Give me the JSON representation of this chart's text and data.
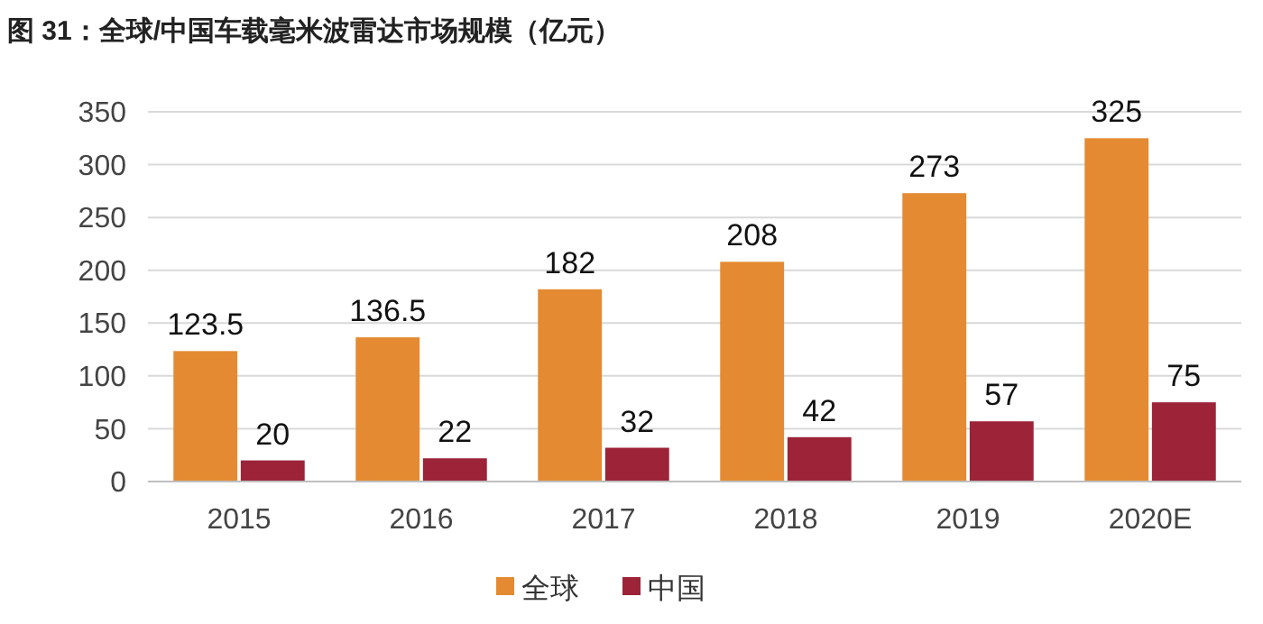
{
  "chart_data": {
    "type": "bar",
    "title": "图 31：全球/中国车载毫米波雷达市场规模（亿元）",
    "categories": [
      "2015",
      "2016",
      "2017",
      "2018",
      "2019",
      "2020E"
    ],
    "series": [
      {
        "name": "全球",
        "color": "#e48a32",
        "values": [
          123.5,
          136.5,
          182,
          208,
          273,
          325
        ]
      },
      {
        "name": "中国",
        "color": "#9c2338",
        "values": [
          20,
          22,
          32,
          42,
          57,
          75
        ]
      }
    ],
    "ylim": [
      0,
      350
    ],
    "yticks": [
      0,
      50,
      100,
      150,
      200,
      250,
      300,
      350
    ],
    "grid": "y",
    "legend": "bottom",
    "data_labels": true
  }
}
